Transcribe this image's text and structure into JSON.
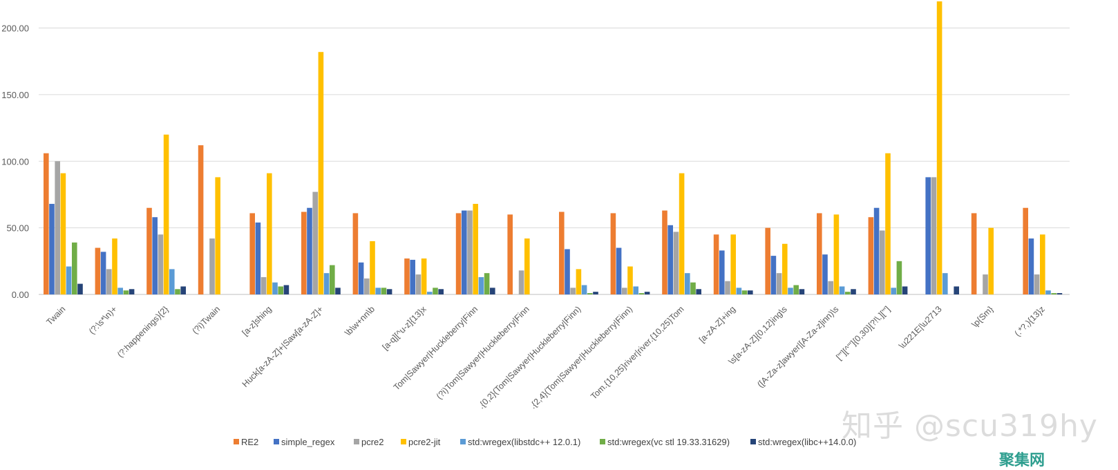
{
  "chart_data": {
    "type": "bar",
    "title": "",
    "xlabel": "",
    "ylabel": "",
    "ylim": [
      0,
      220
    ],
    "yticks": [
      0,
      50,
      100,
      150,
      200
    ],
    "ytick_labels": [
      "0.00",
      "50.00",
      "100.00",
      "150.00",
      "200.00"
    ],
    "grid": true,
    "legend_position": "bottom",
    "categories": [
      "Twain",
      "(?:\\s*\\n)+",
      "(?:happenings){2}",
      "(?i)Twain",
      "[a-z]shing",
      "Huck[a-zA-Z]+|Saw[a-zA-Z]+",
      "\\b\\w+nn\\b",
      "[a-q][^u-z]{13}x",
      "Tom|Sawyer|Huckleberry|Finn",
      "(?i)Tom|Sawyer|Huckleberry|Finn",
      ".{0,2}(Tom|Sawyer|Huckleberry|Finn)",
      ".{2,4}(Tom|Sawyer|Huckleberry|Finn)",
      "Tom.{10,25}river|river.{10,25}Tom",
      "[a-zA-Z]+ing",
      "\\s[a-zA-Z]{0,12}ing\\s",
      "([A-Za-z]awyer|[A-Za-z]inn)\\s",
      "[\"'][^\"']{0,30}[?!\\.][\"']",
      "\\u221E|\\u2713",
      "\\p{Sm}",
      "(.*?,){13}z"
    ],
    "series": [
      {
        "name": "RE2",
        "color": "#ED7D31",
        "values": [
          106,
          35,
          65,
          112,
          61,
          62,
          61,
          27,
          61,
          60,
          62,
          61,
          63,
          45,
          50,
          61,
          58,
          0,
          61,
          65
        ]
      },
      {
        "name": "simple_regex",
        "color": "#4472C4",
        "values": [
          68,
          32,
          58,
          0,
          54,
          65,
          24,
          26,
          63,
          0,
          34,
          35,
          52,
          33,
          29,
          30,
          65,
          88,
          0,
          42
        ]
      },
      {
        "name": "pcre2",
        "color": "#A5A5A5",
        "values": [
          100,
          19,
          45,
          42,
          13,
          77,
          12,
          15,
          63,
          18,
          5,
          5,
          47,
          10,
          16,
          10,
          48,
          88,
          15,
          15
        ]
      },
      {
        "name": "pcre2-jit",
        "color": "#FFC000",
        "values": [
          91,
          42,
          120,
          88,
          91,
          182,
          40,
          27,
          68,
          42,
          19,
          21,
          91,
          45,
          38,
          60,
          106,
          220,
          50,
          45
        ]
      },
      {
        "name": "std:wregex(libstdc++ 12.0.1)",
        "color": "#5B9BD5",
        "values": [
          21,
          5,
          19,
          0,
          9,
          16,
          5,
          2,
          13,
          0,
          7,
          6,
          16,
          5,
          5,
          6,
          5,
          16,
          0,
          3
        ]
      },
      {
        "name": "std:wregex(vc stl 19.33.31629)",
        "color": "#70AD47",
        "values": [
          39,
          3,
          4,
          0,
          6,
          22,
          5,
          5,
          16,
          0,
          1,
          1,
          9,
          3,
          7,
          2,
          25,
          0,
          0,
          1
        ]
      },
      {
        "name": "std:wregex(libc++14.0.0)",
        "color": "#264478",
        "values": [
          8,
          4,
          6,
          0,
          7,
          5,
          4,
          4,
          5,
          0,
          2,
          2,
          4,
          3,
          4,
          4,
          6,
          6,
          0,
          1
        ]
      }
    ]
  },
  "watermark": {
    "text": "知乎 @scu319hy",
    "logo": "聚集网"
  }
}
